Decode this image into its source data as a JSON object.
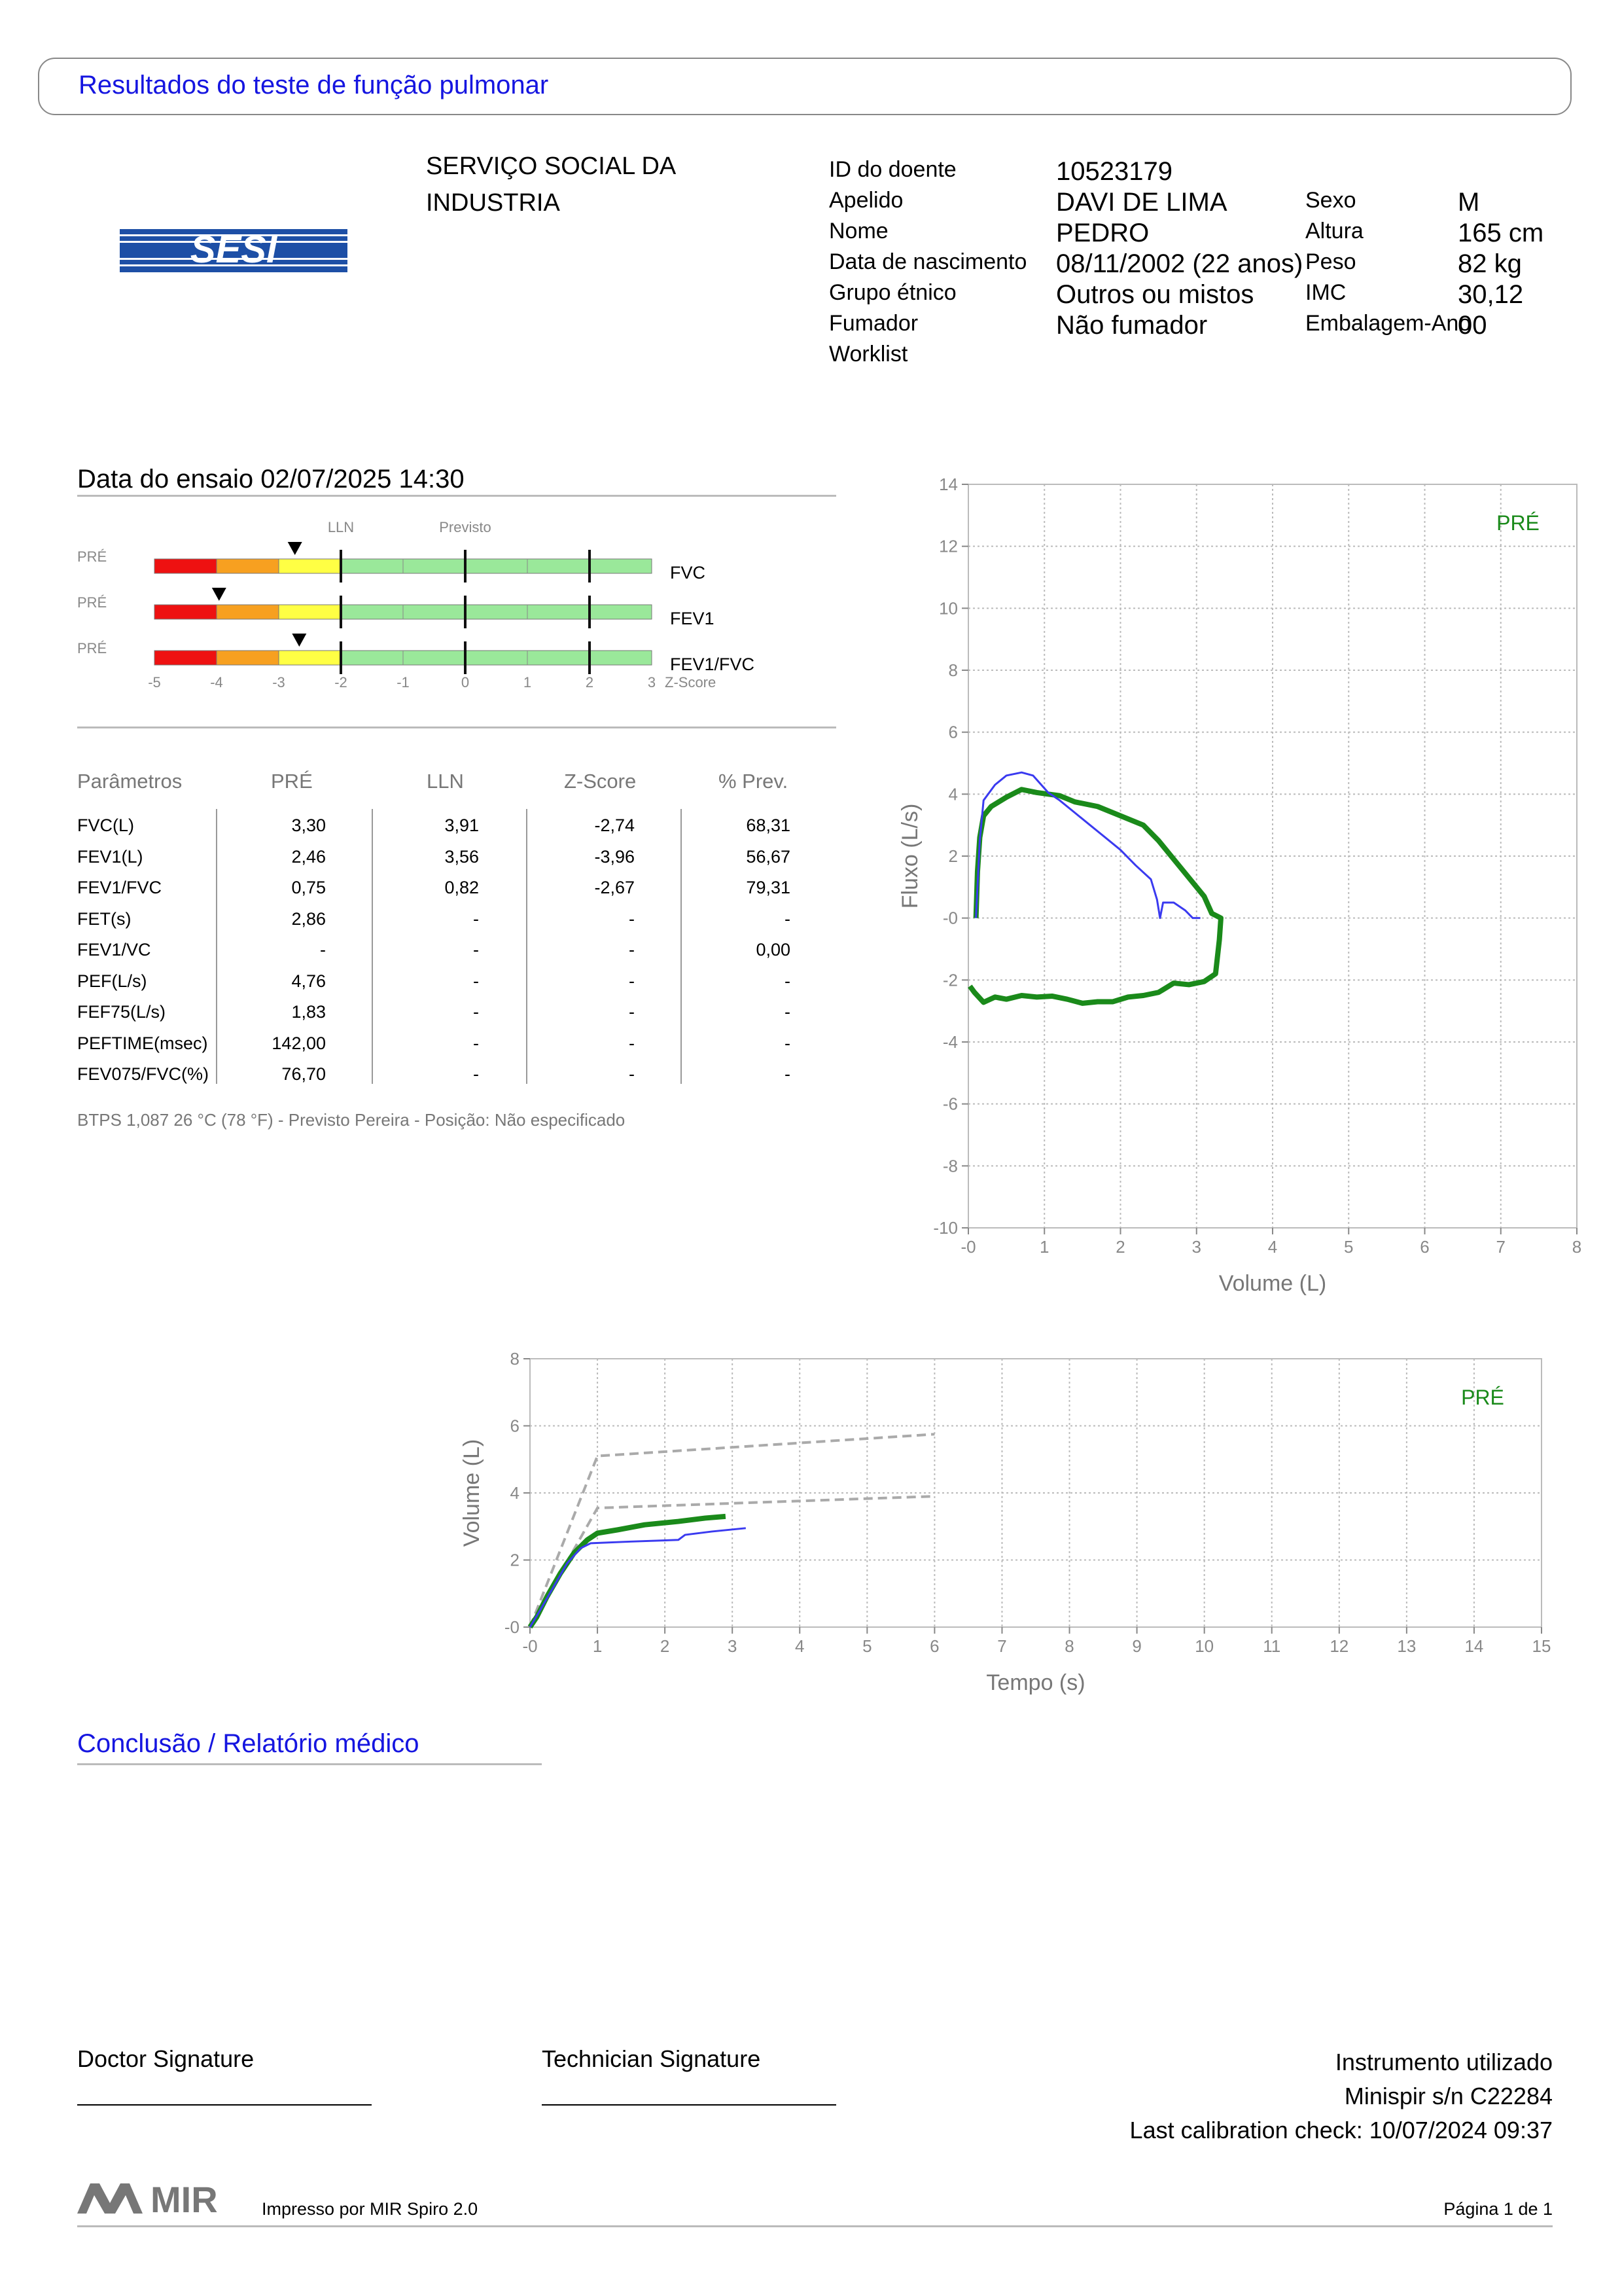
{
  "report_title": "Resultados do teste de função pulmonar",
  "logo": {
    "text": "SESI",
    "icon": "sesi-logo"
  },
  "institution": [
    "SERVIÇO SOCIAL DA",
    "INDUSTRIA"
  ],
  "patient": {
    "left": [
      {
        "label": "ID do doente",
        "value": "10523179"
      },
      {
        "label": "Apelido",
        "value": "DAVI DE LIMA"
      },
      {
        "label": "Nome",
        "value": "PEDRO"
      },
      {
        "label": "Data de nascimento",
        "value": "08/11/2002 (22 anos)"
      },
      {
        "label": "Grupo étnico",
        "value": "Outros ou mistos"
      },
      {
        "label": "Fumador",
        "value": "Não fumador"
      },
      {
        "label": "Worklist",
        "value": ""
      }
    ],
    "right": [
      {
        "label": "Sexo",
        "value": "M"
      },
      {
        "label": "Altura",
        "value": "165 cm"
      },
      {
        "label": "Peso",
        "value": "82 kg"
      },
      {
        "label": "IMC",
        "value": "30,12"
      },
      {
        "label": "Embalagem-Ano",
        "value": "00"
      }
    ]
  },
  "test_date": "Data do ensaio 02/07/2025 14:30",
  "zscore_chart": {
    "header_lln": "LLN",
    "header_previsto": "Previsto",
    "row_label": "PRÉ",
    "rows": [
      {
        "name": "FVC",
        "z": -2.74
      },
      {
        "name": "FEV1",
        "z": -3.96
      },
      {
        "name": "FEV1/FVC",
        "z": -2.67
      }
    ],
    "ticks": [
      "-5",
      "-4",
      "-3",
      "-2",
      "-1",
      "0",
      "1",
      "2",
      "3"
    ],
    "axis_label": "Z-Score",
    "colors": {
      "red": "#ee1111",
      "orange": "#f7a020",
      "yellow": "#ffff44",
      "green": "#9ae89a"
    }
  },
  "table": {
    "headers": [
      "Parâmetros",
      "PRÉ",
      "LLN",
      "Z-Score",
      "% Prev."
    ],
    "rows": [
      [
        "FVC(L)",
        "3,30",
        "3,91",
        "-2,74",
        "68,31"
      ],
      [
        "FEV1(L)",
        "2,46",
        "3,56",
        "-3,96",
        "56,67"
      ],
      [
        "FEV1/FVC",
        "0,75",
        "0,82",
        "-2,67",
        "79,31"
      ],
      [
        "FET(s)",
        "2,86",
        "-",
        "-",
        "-"
      ],
      [
        "FEV1/VC",
        "-",
        "-",
        "-",
        "0,00"
      ],
      [
        "PEF(L/s)",
        "4,76",
        "-",
        "-",
        "-"
      ],
      [
        "FEF75(L/s)",
        "1,83",
        "-",
        "-",
        "-"
      ],
      [
        "PEFTIME(msec)",
        "142,00",
        "-",
        "-",
        "-"
      ],
      [
        "FEV075/FVC(%)",
        "76,70",
        "-",
        "-",
        "-"
      ]
    ]
  },
  "btps_note": "BTPS 1,087 26 °C (78 °F) - Previsto Pereira - Posição: Não especificado",
  "chart_data": [
    {
      "type": "line",
      "title": "",
      "xlabel": "Volume (L)",
      "ylabel": "Fluxo (L/s)",
      "xlim": [
        0,
        8
      ],
      "ylim": [
        -10,
        14
      ],
      "xticks": [
        "-0",
        "1",
        "2",
        "3",
        "4",
        "5",
        "6",
        "7",
        "8"
      ],
      "yticks": [
        "14",
        "12",
        "10",
        "8",
        "6",
        "4",
        "2",
        "-0",
        "-2",
        "-4",
        "-6",
        "-8",
        "-10"
      ],
      "legend": "PRÉ",
      "series": [
        {
          "color": "#1a8a1a",
          "points": [
            [
              0.1,
              0.0
            ],
            [
              0.12,
              1.5
            ],
            [
              0.15,
              2.6
            ],
            [
              0.2,
              3.3
            ],
            [
              0.3,
              3.6
            ],
            [
              0.5,
              3.9
            ],
            [
              0.7,
              4.15
            ],
            [
              0.9,
              4.05
            ],
            [
              1.2,
              3.95
            ],
            [
              1.4,
              3.75
            ],
            [
              1.7,
              3.6
            ],
            [
              2.0,
              3.3
            ],
            [
              2.3,
              3.0
            ],
            [
              2.5,
              2.5
            ],
            [
              2.7,
              1.9
            ],
            [
              2.9,
              1.3
            ],
            [
              3.1,
              0.7
            ],
            [
              3.2,
              0.15
            ],
            [
              3.32,
              0.0
            ],
            [
              3.3,
              -0.7
            ],
            [
              3.25,
              -1.8
            ],
            [
              3.1,
              -2.05
            ],
            [
              2.9,
              -2.15
            ],
            [
              2.7,
              -2.1
            ],
            [
              2.5,
              -2.4
            ],
            [
              2.3,
              -2.5
            ],
            [
              2.1,
              -2.55
            ],
            [
              1.9,
              -2.7
            ],
            [
              1.7,
              -2.7
            ],
            [
              1.5,
              -2.75
            ],
            [
              1.3,
              -2.62
            ],
            [
              1.1,
              -2.52
            ],
            [
              0.9,
              -2.55
            ],
            [
              0.7,
              -2.5
            ],
            [
              0.5,
              -2.62
            ],
            [
              0.35,
              -2.55
            ],
            [
              0.2,
              -2.72
            ],
            [
              0.08,
              -2.4
            ],
            [
              0.02,
              -2.2
            ]
          ]
        },
        {
          "color": "#3a3af0",
          "points": [
            [
              0.1,
              0.0
            ],
            [
              0.15,
              2.5
            ],
            [
              0.2,
              3.8
            ],
            [
              0.35,
              4.3
            ],
            [
              0.5,
              4.6
            ],
            [
              0.7,
              4.7
            ],
            [
              0.85,
              4.6
            ],
            [
              1.05,
              4.05
            ],
            [
              1.2,
              3.8
            ],
            [
              1.4,
              3.4
            ],
            [
              1.6,
              3.0
            ],
            [
              1.8,
              2.6
            ],
            [
              2.0,
              2.2
            ],
            [
              2.2,
              1.7
            ],
            [
              2.4,
              1.25
            ],
            [
              2.48,
              0.6
            ],
            [
              2.52,
              0.0
            ],
            [
              2.56,
              0.5
            ],
            [
              2.7,
              0.5
            ],
            [
              2.85,
              0.25
            ],
            [
              2.95,
              0.0
            ],
            [
              3.05,
              0.0
            ]
          ]
        }
      ]
    },
    {
      "type": "line",
      "title": "",
      "xlabel": "Tempo (s)",
      "ylabel": "Volume (L)",
      "xlim": [
        0,
        15
      ],
      "ylim": [
        0,
        8
      ],
      "xticks": [
        "-0",
        "1",
        "2",
        "3",
        "4",
        "5",
        "6",
        "7",
        "8",
        "9",
        "10",
        "11",
        "12",
        "13",
        "14",
        "15"
      ],
      "yticks": [
        "8",
        "6",
        "4",
        "2",
        "-0"
      ],
      "legend": "PRÉ",
      "series": [
        {
          "color": "#1a8a1a",
          "points": [
            [
              0,
              0.0
            ],
            [
              0.1,
              0.3
            ],
            [
              0.25,
              0.9
            ],
            [
              0.45,
              1.6
            ],
            [
              0.65,
              2.2
            ],
            [
              0.85,
              2.6
            ],
            [
              1.0,
              2.8
            ],
            [
              1.3,
              2.9
            ],
            [
              1.7,
              3.05
            ],
            [
              2.2,
              3.15
            ],
            [
              2.6,
              3.25
            ],
            [
              2.9,
              3.3
            ]
          ]
        },
        {
          "color": "#3a3af0",
          "points": [
            [
              0,
              0.0
            ],
            [
              0.15,
              0.5
            ],
            [
              0.35,
              1.2
            ],
            [
              0.55,
              1.9
            ],
            [
              0.75,
              2.35
            ],
            [
              0.9,
              2.5
            ],
            [
              1.5,
              2.55
            ],
            [
              2.2,
              2.6
            ],
            [
              2.3,
              2.75
            ],
            [
              2.7,
              2.85
            ],
            [
              3.2,
              2.95
            ]
          ]
        }
      ],
      "predicted_lines": [
        {
          "color": "#aaaaaa",
          "points": [
            [
              0,
              0
            ],
            [
              1,
              5.1
            ],
            [
              6,
              5.75
            ]
          ]
        },
        {
          "color": "#aaaaaa",
          "points": [
            [
              0,
              0
            ],
            [
              1,
              3.55
            ],
            [
              6,
              3.9
            ]
          ]
        }
      ]
    }
  ],
  "conclusion_title": "Conclusão / Relatório médico",
  "signatures": {
    "doctor": "Doctor Signature",
    "technician": "Technician Signature"
  },
  "instrument": [
    "Instrumento utilizado",
    "Minispir s/n C22284",
    "Last calibration check: 10/07/2024 09:37"
  ],
  "footer": {
    "brand": "MIR",
    "printed_by": "Impresso por MIR Spiro 2.0",
    "page": "Página 1 de 1"
  }
}
